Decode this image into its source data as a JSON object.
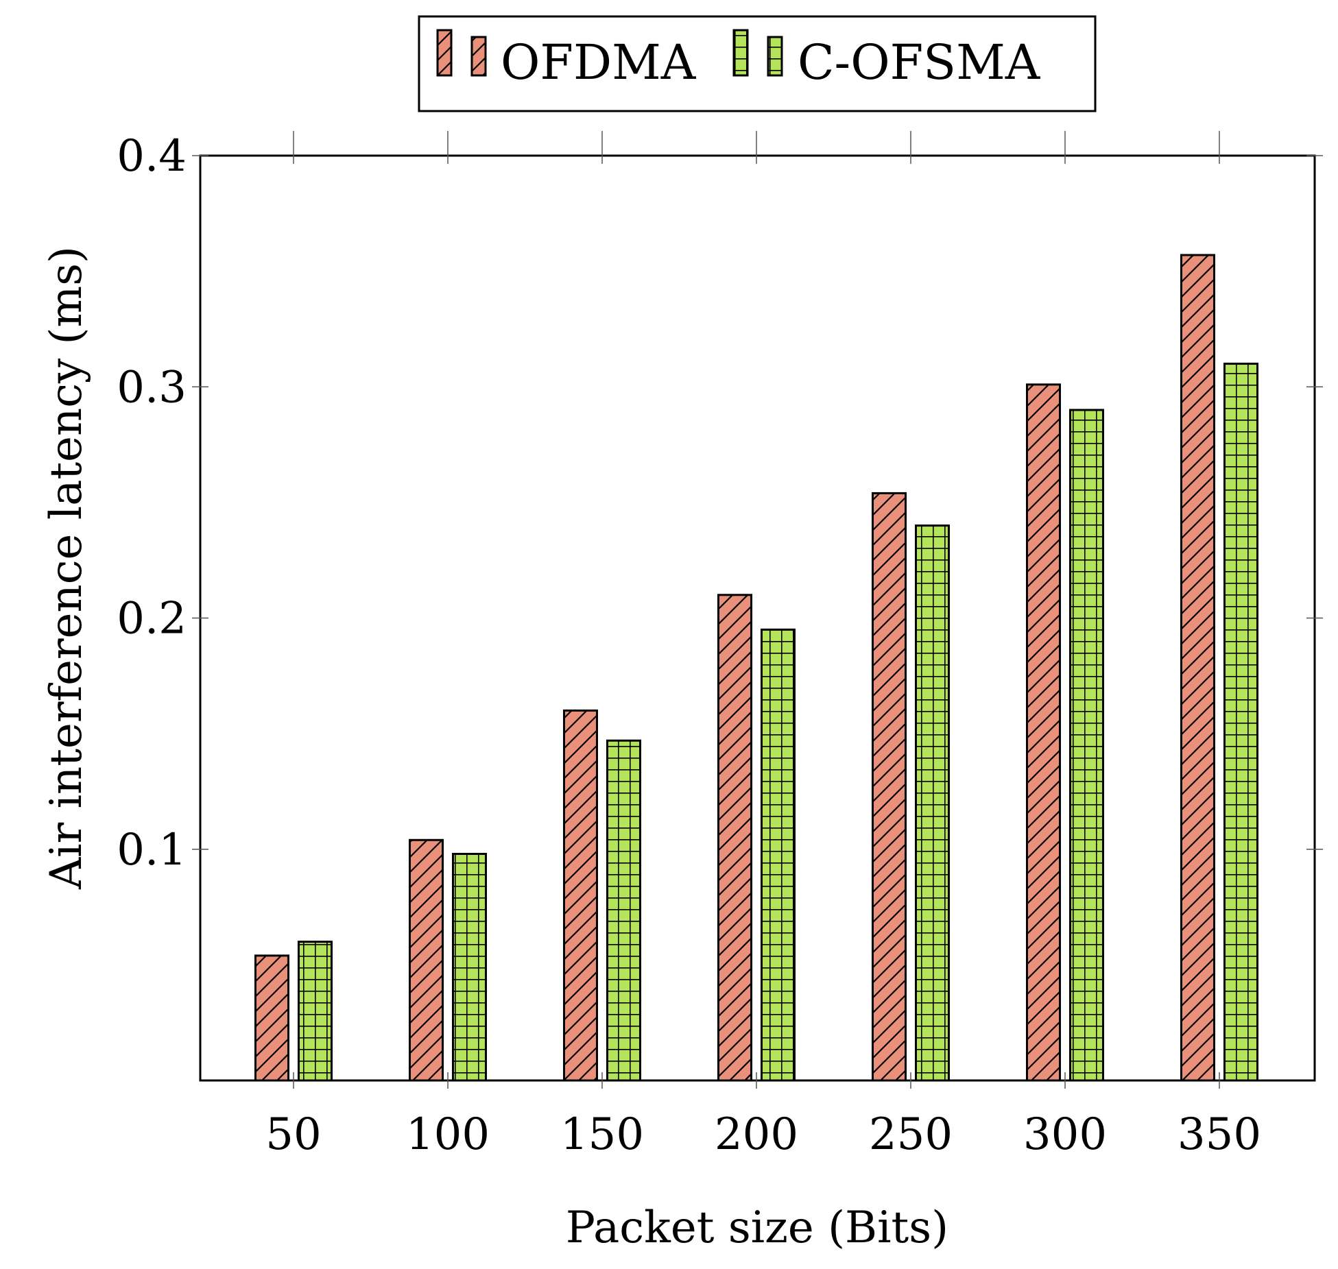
{
  "chart_data": {
    "type": "bar",
    "title": "",
    "xlabel": "Packet size (Bits)",
    "ylabel": "Air interference latency (ms)",
    "categories": [
      "50",
      "100",
      "150",
      "200",
      "250",
      "300",
      "350"
    ],
    "series": [
      {
        "name": "OFDMA",
        "values": [
          0.054,
          0.104,
          0.16,
          0.21,
          0.254,
          0.301,
          0.357
        ],
        "color": "#E8907A",
        "pattern": "diagonal-hatch"
      },
      {
        "name": "C-OFSMA",
        "values": [
          0.06,
          0.098,
          0.147,
          0.195,
          0.24,
          0.29,
          0.31
        ],
        "color": "#B4E45A",
        "pattern": "grid-hatch"
      }
    ],
    "ylim": [
      0,
      0.4
    ],
    "yticks": [
      "0.1",
      "0.2",
      "0.3",
      "0.4"
    ],
    "grid": false,
    "legend_position": "top-center"
  }
}
